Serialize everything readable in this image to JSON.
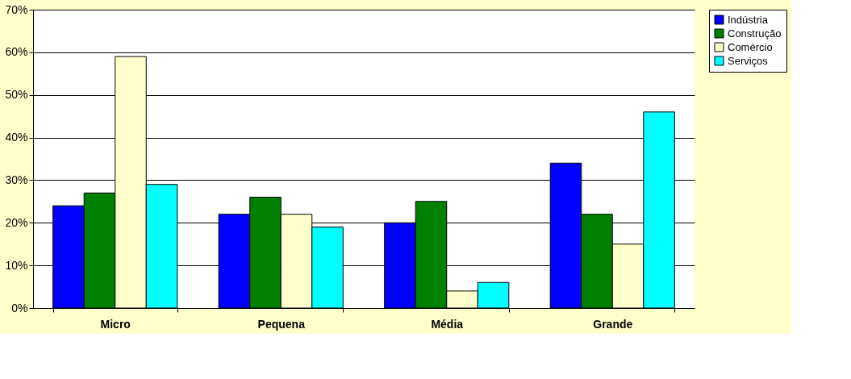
{
  "chart_data": {
    "type": "bar",
    "categories": [
      "Micro",
      "Pequena",
      "Média",
      "Grande"
    ],
    "series": [
      {
        "name": "Indústria",
        "color": "#0000ff",
        "values": [
          24,
          22,
          20,
          34
        ]
      },
      {
        "name": "Construção",
        "color": "#008000",
        "values": [
          27,
          26,
          25,
          22
        ]
      },
      {
        "name": "Comércio",
        "color": "#ffffcc",
        "values": [
          59,
          22,
          4,
          15
        ]
      },
      {
        "name": "Serviços",
        "color": "#00ffff",
        "values": [
          29,
          19,
          6,
          46
        ]
      }
    ],
    "ylim": [
      0,
      70
    ],
    "yticks": [
      {
        "value": 0,
        "label": "0%"
      },
      {
        "value": 10,
        "label": "10%"
      },
      {
        "value": 20,
        "label": "20%"
      },
      {
        "value": 30,
        "label": "30%"
      },
      {
        "value": 40,
        "label": "40%"
      },
      {
        "value": 50,
        "label": "50%"
      },
      {
        "value": 60,
        "label": "60%"
      },
      {
        "value": 70,
        "label": "70%"
      }
    ],
    "grid": "y",
    "legend": "right"
  }
}
